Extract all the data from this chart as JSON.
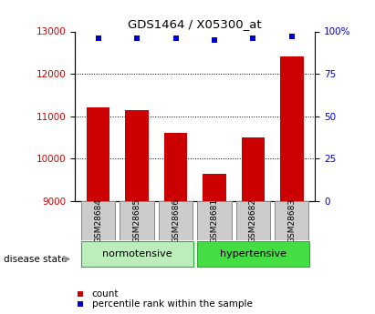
{
  "title": "GDS1464 / X05300_at",
  "samples": [
    "GSM28684",
    "GSM28685",
    "GSM28686",
    "GSM28681",
    "GSM28682",
    "GSM28683"
  ],
  "counts": [
    11200,
    11150,
    10600,
    9650,
    10500,
    12400
  ],
  "percentile_ranks": [
    96,
    96,
    96,
    95,
    96,
    97
  ],
  "bar_color": "#cc0000",
  "dot_color": "#0000cc",
  "ylim_left": [
    9000,
    13000
  ],
  "ylim_right": [
    0,
    100
  ],
  "yticks_left": [
    9000,
    10000,
    11000,
    12000,
    13000
  ],
  "yticks_right": [
    0,
    25,
    50,
    75,
    100
  ],
  "yticklabels_right": [
    "0",
    "25",
    "50",
    "75",
    "100%"
  ],
  "groups": [
    {
      "label": "normotensive",
      "samples": [
        "GSM28684",
        "GSM28685",
        "GSM28686"
      ],
      "color": "#aaeea a"
    },
    {
      "label": "hypertensive",
      "samples": [
        "GSM28681",
        "GSM28682",
        "GSM28683"
      ],
      "color": "#44dd44"
    }
  ],
  "group_label": "disease state",
  "legend_count_label": "count",
  "legend_percentile_label": "percentile rank within the sample",
  "bg_color": "#ffffff",
  "grid_color": "#000000",
  "tick_label_color_left": "#cc0000",
  "tick_label_color_right": "#0000cc",
  "xlabel_box_color": "#cccccc",
  "normotensive_color": "#bbeebb",
  "hypertensive_color": "#44dd44",
  "group_border_color": "#33aa33"
}
